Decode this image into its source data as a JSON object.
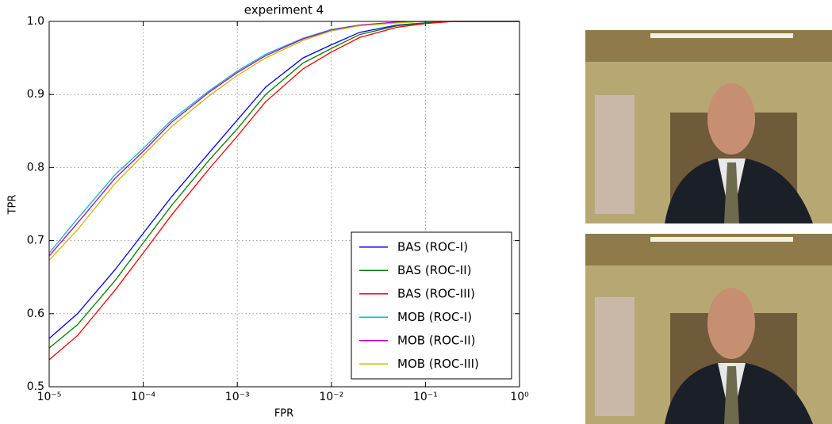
{
  "chart_data": {
    "type": "line",
    "title": "experiment 4",
    "x_label": "FPR",
    "y_label": "TPR",
    "xscale": "log",
    "grid": true,
    "legend": "lower right",
    "xlim": [
      1e-05,
      1
    ],
    "ylim": [
      0.5,
      1
    ],
    "xticks": [
      {
        "value": 1e-05,
        "label": "10⁻⁵"
      },
      {
        "value": 0.0001,
        "label": "10⁻⁴"
      },
      {
        "value": 0.001,
        "label": "10⁻³"
      },
      {
        "value": 0.01,
        "label": "10⁻²"
      },
      {
        "value": 0.1,
        "label": "10⁻¹"
      },
      {
        "value": 1,
        "label": "10⁰"
      }
    ],
    "yticks": [
      0.5,
      0.6,
      0.7,
      0.8,
      0.9,
      {
        "value": 1,
        "label": "1.0"
      }
    ],
    "x": [
      1e-05,
      2e-05,
      5e-05,
      0.0001,
      0.0002,
      0.0005,
      0.001,
      0.002,
      0.005,
      0.01,
      0.02,
      0.05,
      0.1,
      0.2,
      0.5,
      1
    ],
    "series": [
      {
        "name": "BAS (ROC-I)",
        "color": "#0000ff",
        "values": [
          0.566,
          0.6,
          0.66,
          0.71,
          0.76,
          0.82,
          0.865,
          0.91,
          0.95,
          0.968,
          0.985,
          0.995,
          0.998,
          1,
          1,
          1
        ]
      },
      {
        "name": "BAS (ROC-II)",
        "color": "#008000",
        "values": [
          0.553,
          0.585,
          0.645,
          0.697,
          0.748,
          0.81,
          0.853,
          0.9,
          0.943,
          0.963,
          0.982,
          0.994,
          0.998,
          1,
          1,
          1
        ]
      },
      {
        "name": "BAS (ROC-III)",
        "color": "#ff0000",
        "values": [
          0.537,
          0.57,
          0.632,
          0.683,
          0.735,
          0.798,
          0.843,
          0.89,
          0.935,
          0.958,
          0.978,
          0.992,
          0.997,
          1,
          1,
          1
        ]
      },
      {
        "name": "MOB (ROC-I)",
        "color": "#00bfbf",
        "values": [
          0.683,
          0.73,
          0.79,
          0.826,
          0.865,
          0.905,
          0.932,
          0.955,
          0.977,
          0.989,
          0.995,
          0.999,
          1,
          1,
          1,
          1
        ]
      },
      {
        "name": "MOB (ROC-II)",
        "color": "#bf00bf",
        "values": [
          0.679,
          0.724,
          0.785,
          0.822,
          0.862,
          0.903,
          0.93,
          0.953,
          0.976,
          0.988,
          0.995,
          0.999,
          1,
          1,
          1,
          1
        ]
      },
      {
        "name": "MOB (ROC-III)",
        "color": "#bfbf00",
        "values": [
          0.673,
          0.715,
          0.778,
          0.817,
          0.856,
          0.898,
          0.926,
          0.95,
          0.974,
          0.987,
          0.994,
          0.998,
          1,
          1,
          1,
          1
        ]
      }
    ]
  }
}
